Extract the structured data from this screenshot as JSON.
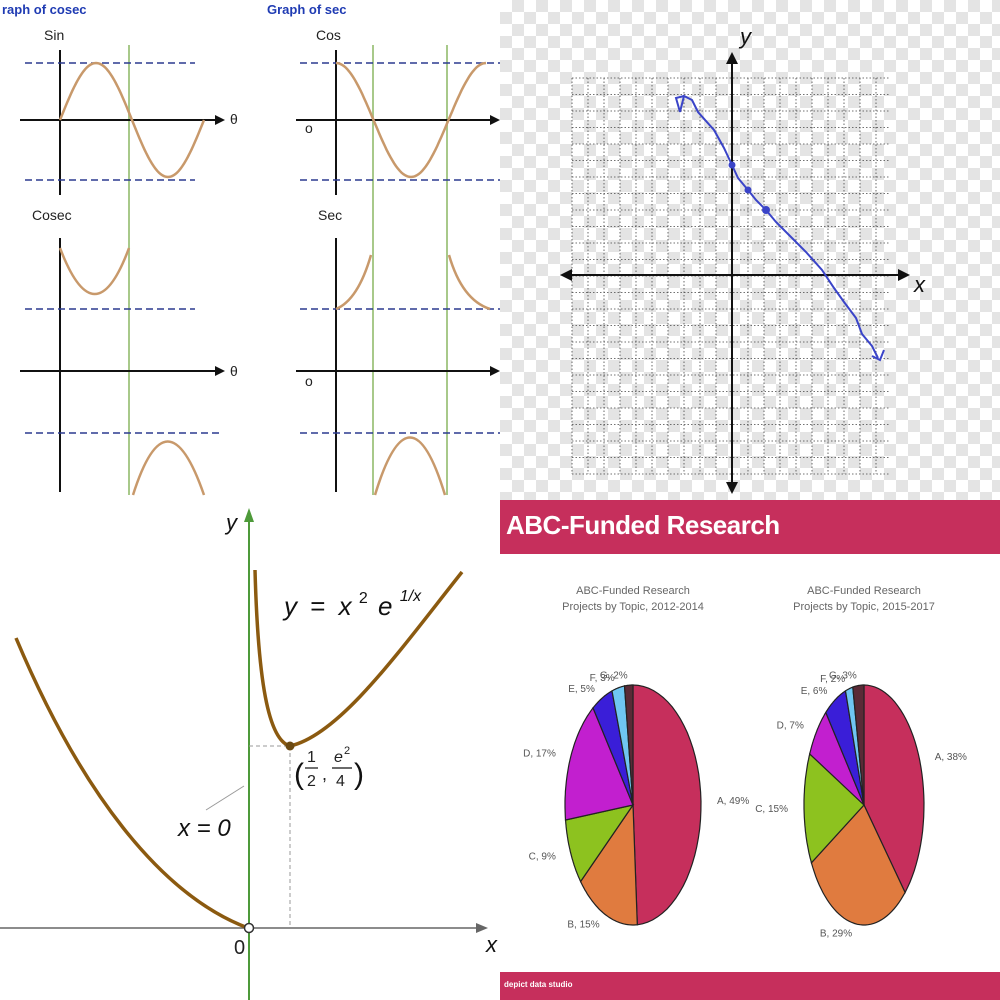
{
  "trig": {
    "left_title": "raph of cosec",
    "right_title": "Graph of sec",
    "sin_label": "Sin",
    "cos_label": "Cos",
    "cosec_label": "Cosec",
    "sec_label": "Sec",
    "theta_label": "θ",
    "origin_label": "o",
    "colors": {
      "curve": "#c8996b",
      "asymptote": "#a8c98a",
      "dash": "#2b3a8f"
    }
  },
  "grid_plot": {
    "x_label": "x",
    "y_label": "y",
    "colors": {
      "line": "#3a44c8"
    }
  },
  "function_plot": {
    "equation": {
      "y": "y",
      "eq": "=",
      "x": "x",
      "exp2": "2",
      "e": "e",
      "exp_frac": "1/x"
    },
    "min_point": {
      "open": "(",
      "num1": "1",
      "den1": "2",
      "sep": ",",
      "num2_base": "e",
      "num2_exp": "2",
      "den2": "4",
      "close": ")"
    },
    "asymptote_label": "x = 0",
    "origin_label": "0",
    "x_label": "x",
    "y_label": "y",
    "colors": {
      "curve": "#8b5a10",
      "asymptote": "#4e9a3a"
    }
  },
  "pies": {
    "banner_title": "ABC-Funded Research",
    "footer": "depict data studio"
  },
  "chart_data": [
    {
      "type": "pie",
      "title": "ABC-Funded Research Projects by Topic, 2012-2014",
      "title_lines": [
        "ABC-Funded Research",
        "Projects by Topic, 2012-2014"
      ],
      "slices": [
        {
          "label": "A, 49%",
          "value": 49,
          "color": "#c62f5c"
        },
        {
          "label": "B, 15%",
          "value": 15,
          "color": "#e07b3f"
        },
        {
          "label": "C, 9%",
          "value": 9,
          "color": "#8dc21f"
        },
        {
          "label": "D, 17%",
          "value": 17,
          "color": "#c21fcf"
        },
        {
          "label": "E, 5%",
          "value": 5,
          "color": "#3a1ed8"
        },
        {
          "label": "F, 3%",
          "value": 3,
          "color": "#6fc6f2"
        },
        {
          "label": "G, 2%",
          "value": 2,
          "color": "#5a2a36"
        }
      ]
    },
    {
      "type": "pie",
      "title": "ABC-Funded Research Projects by Topic, 2015-2017",
      "title_lines": [
        "ABC-Funded Research",
        "Projects by Topic, 2015-2017"
      ],
      "slices": [
        {
          "label": "A, 38%",
          "value": 38,
          "color": "#c62f5c"
        },
        {
          "label": "B, 29%",
          "value": 29,
          "color": "#e07b3f"
        },
        {
          "label": "C, 15%",
          "value": 15,
          "color": "#8dc21f"
        },
        {
          "label": "D, 7%",
          "value": 7,
          "color": "#c21fcf"
        },
        {
          "label": "E, 6%",
          "value": 6,
          "color": "#3a1ed8"
        },
        {
          "label": "F, 2%",
          "value": 2,
          "color": "#6fc6f2"
        },
        {
          "label": "G, 3%",
          "value": 3,
          "color": "#5a2a36"
        }
      ]
    }
  ]
}
